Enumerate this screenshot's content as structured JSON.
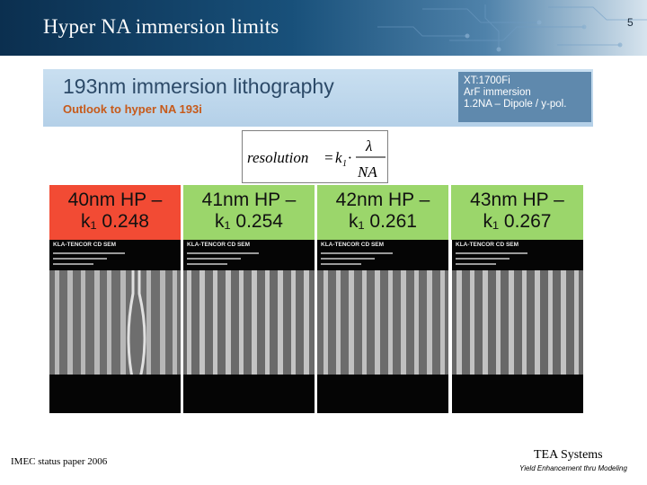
{
  "header": {
    "title": "Hyper NA immersion limits",
    "page_number": "5"
  },
  "band": {
    "title": "193nm immersion lithography",
    "subtitle": "Outlook to hyper NA 193i",
    "specs": [
      "XT:1700Fi",
      "ArF immersion",
      "1.2NA – Dipole / y-pol."
    ]
  },
  "formula": {
    "lhs": "resolution",
    "equals": "=",
    "k": "k",
    "k_sub": "1",
    "dot": "·",
    "numerator": "λ",
    "denominator": "NA"
  },
  "hp_labels": [
    {
      "line1": "40nm HP –",
      "line2": "k₁ 0.248",
      "color": "#f24b34"
    },
    {
      "line1": "41nm HP –",
      "line2": "k₁ 0.254",
      "color": "#9bd66b"
    },
    {
      "line1": "42nm HP –",
      "line2": "k₁ 0.261",
      "color": "#9bd66b"
    },
    {
      "line1": "43nm HP –",
      "line2": "k₁ 0.267",
      "color": "#9bd66b"
    }
  ],
  "sem_images": [
    {
      "header": "KLA-TENCOR CD SEM"
    },
    {
      "header": "KLA-TENCOR CD SEM"
    },
    {
      "header": "KLA-TENCOR CD SEM"
    },
    {
      "header": "KLA-TENCOR CD SEM"
    }
  ],
  "footer": {
    "left": "IMEC status paper 2006",
    "brand": "TEA Systems",
    "tagline": "Yield Enhancement thru Modeling"
  }
}
